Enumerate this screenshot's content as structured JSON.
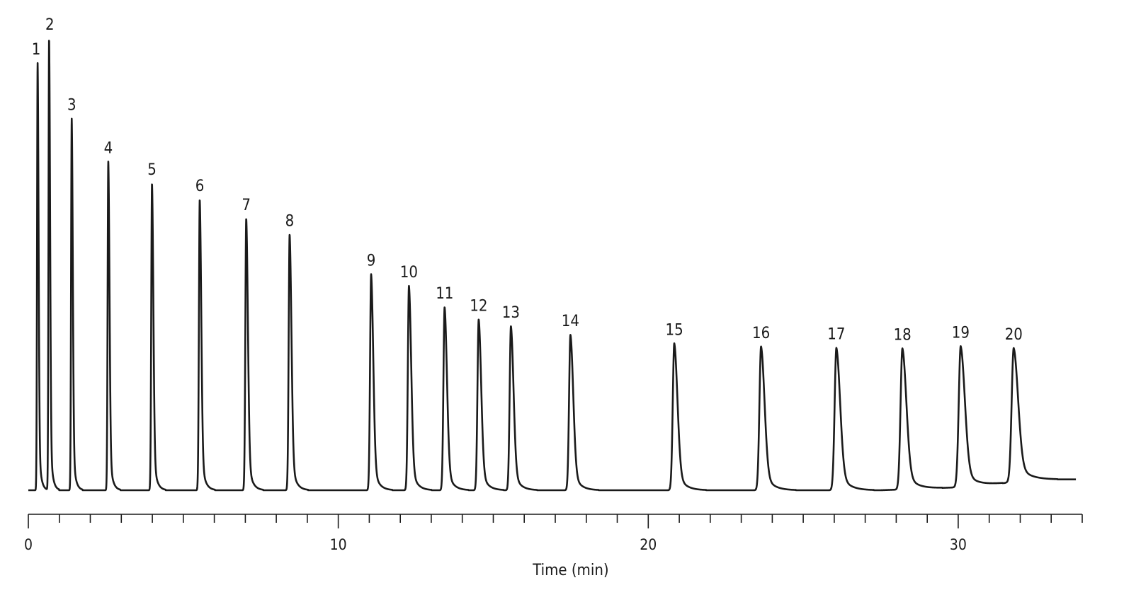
{
  "chart_data": {
    "type": "line",
    "title": "",
    "xlabel": "Time (min)",
    "ylabel": "",
    "xlim": [
      0,
      34
    ],
    "ylim": [
      0,
      1
    ],
    "x_ticks_major": [
      0,
      10,
      20,
      30
    ],
    "x_tick_labels": [
      "0",
      "10",
      "20",
      "30"
    ],
    "x_minor_step": 1,
    "grid": false,
    "legend": "none",
    "line_color": "#1a1a1a",
    "baseline_drift": [
      {
        "x": 0,
        "y": 0.0
      },
      {
        "x": 27.5,
        "y": 0.0
      },
      {
        "x": 29.8,
        "y": 0.006
      },
      {
        "x": 31.5,
        "y": 0.016
      },
      {
        "x": 32.0,
        "y": 0.024
      },
      {
        "x": 34.0,
        "y": 0.024
      }
    ],
    "peaks": [
      {
        "label": "1",
        "rt": 0.3,
        "height": 0.945
      },
      {
        "label": "2",
        "rt": 0.67,
        "height": 1.0
      },
      {
        "label": "3",
        "rt": 1.4,
        "height": 0.822
      },
      {
        "label": "4",
        "rt": 2.58,
        "height": 0.727
      },
      {
        "label": "5",
        "rt": 3.99,
        "height": 0.679
      },
      {
        "label": "6",
        "rt": 5.53,
        "height": 0.643
      },
      {
        "label": "7",
        "rt": 7.03,
        "height": 0.601
      },
      {
        "label": "8",
        "rt": 8.43,
        "height": 0.566
      },
      {
        "label": "9",
        "rt": 11.06,
        "height": 0.478
      },
      {
        "label": "10",
        "rt": 12.28,
        "height": 0.452
      },
      {
        "label": "11",
        "rt": 13.43,
        "height": 0.405
      },
      {
        "label": "12",
        "rt": 14.53,
        "height": 0.378
      },
      {
        "label": "13",
        "rt": 15.57,
        "height": 0.363
      },
      {
        "label": "14",
        "rt": 17.49,
        "height": 0.344
      },
      {
        "label": "15",
        "rt": 20.84,
        "height": 0.325
      },
      {
        "label": "16",
        "rt": 23.64,
        "height": 0.318
      },
      {
        "label": "17",
        "rt": 26.07,
        "height": 0.315
      },
      {
        "label": "18",
        "rt": 28.2,
        "height": 0.312
      },
      {
        "label": "19",
        "rt": 30.08,
        "height": 0.311
      },
      {
        "label": "20",
        "rt": 31.79,
        "height": 0.294
      }
    ]
  }
}
